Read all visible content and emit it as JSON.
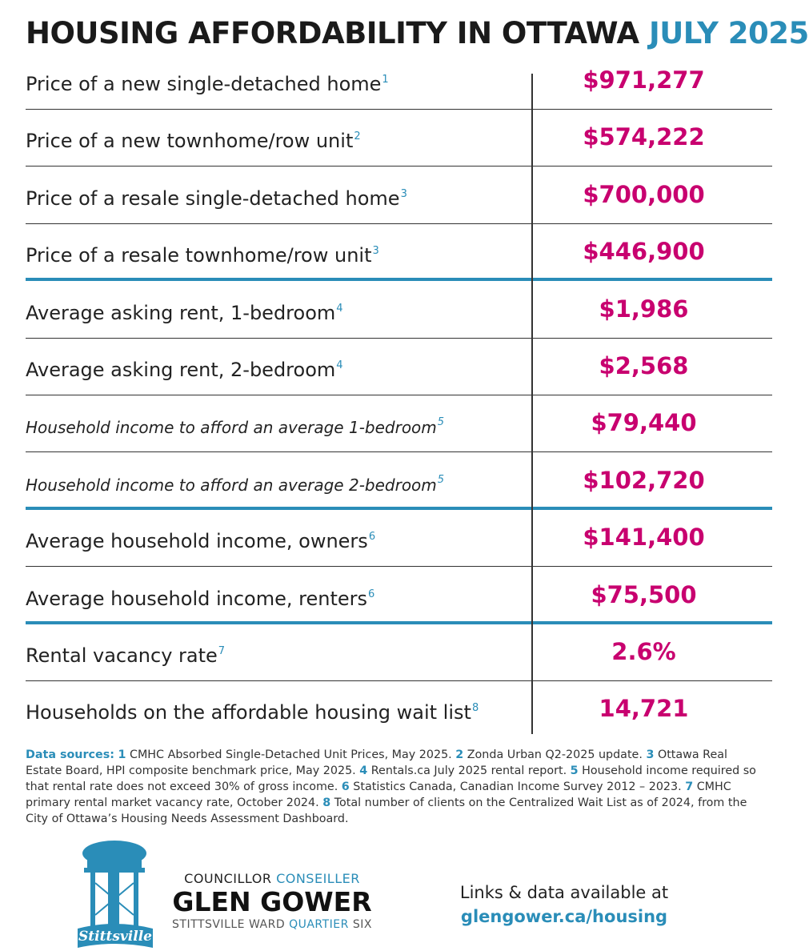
{
  "header": {
    "title": "HOUSING AFFORDABILITY IN OTTAWA",
    "date": "JULY 2025"
  },
  "table": {
    "groups": [
      {
        "rows": [
          {
            "label": "Price of a new single-detached home",
            "note": "1",
            "value": "$971,277"
          },
          {
            "label": "Price of a new townhome/row unit",
            "note": "2",
            "value": "$574,222"
          },
          {
            "label": "Price of a resale single-detached home",
            "note": "3",
            "value": "$700,000"
          },
          {
            "label": "Price of a resale townhome/row unit",
            "note": "3",
            "value": "$446,900"
          }
        ]
      },
      {
        "rows": [
          {
            "label": "Average asking rent, 1-bedroom",
            "note": "4",
            "value": "$1,986"
          },
          {
            "label": "Average asking rent, 2-bedroom",
            "note": "4",
            "value": "$2,568"
          },
          {
            "label": "Household income to afford an average 1-bedroom",
            "note": "5",
            "value": "$79,440",
            "italic": true
          },
          {
            "label": "Household income to afford an average 2-bedroom",
            "note": "5",
            "value": "$102,720",
            "italic": true
          }
        ]
      },
      {
        "rows": [
          {
            "label": "Average household income, owners",
            "note": "6",
            "value": "$141,400"
          },
          {
            "label": "Average household income, renters",
            "note": "6",
            "value": "$75,500"
          }
        ]
      },
      {
        "rows": [
          {
            "label": "Rental vacancy rate",
            "note": "7",
            "value": "2.6%"
          },
          {
            "label": "Households on the affordable housing wait list",
            "note": "8",
            "value": "14,721"
          }
        ]
      }
    ]
  },
  "sources": {
    "heading": "Data sources:",
    "items": [
      {
        "num": "1",
        "text": "CMHC Absorbed Single-Detached Unit Prices, May 2025."
      },
      {
        "num": "2",
        "text": "Zonda Urban Q2-2025 update."
      },
      {
        "num": "3",
        "text": "Ottawa Real Estate Board, HPI composite benchmark price, May 2025."
      },
      {
        "num": "4",
        "text": "Rentals.ca July 2025 rental report."
      },
      {
        "num": "5",
        "text": "Household income required so that rental rate does not exceed 30% of gross income."
      },
      {
        "num": "6",
        "text": "Statistics Canada, Canadian Income Survey 2012 – 2023."
      },
      {
        "num": "7",
        "text": "CMHC primary rental market vacancy rate, October 2024."
      },
      {
        "num": "8",
        "text": "Total number of clients on the Centralized Wait List as of 2024, from the City of Ottawa’s Housing Needs Assessment Dashboard."
      }
    ]
  },
  "footer": {
    "logo": "Stittsville",
    "role": "COUNCILLOR",
    "role_fr": "CONSEILLER",
    "name": "GLEN GOWER",
    "ward": "STITTSVILLE WARD",
    "ward_fr": "QUARTIER",
    "ward_num": "SIX",
    "links": "Links & data available at",
    "url": "glengower.ca/housing"
  }
}
